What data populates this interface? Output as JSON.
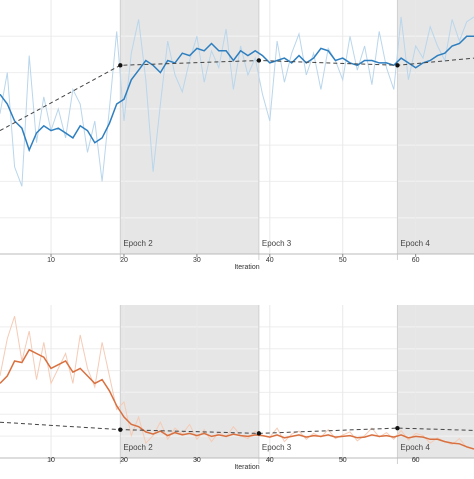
{
  "chart_data": [
    {
      "type": "line",
      "title": "",
      "xlabel": "Iteration",
      "ylabel": "",
      "xlim": [
        3,
        68
      ],
      "xticks": [
        10,
        20,
        30,
        40,
        50,
        60
      ],
      "grid": true,
      "epoch_boundaries": [
        19.5,
        38.5,
        57.5
      ],
      "epoch_labels": [
        "Epoch 2",
        "Epoch 3",
        "Epoch 4"
      ],
      "shaded_epochs": [
        [
          19.5,
          38.5
        ],
        [
          57.5,
          68
        ]
      ],
      "colors": {
        "smoothed": "#2e7fc0",
        "raw": "#b9d6ec",
        "validation": "#444444",
        "shade": "#e6e6e6"
      },
      "series": [
        {
          "role": "raw",
          "x": [
            3,
            4,
            5,
            6,
            7,
            8,
            9,
            10,
            11,
            12,
            13,
            14,
            15,
            16,
            17,
            18,
            19,
            20,
            21,
            22,
            23,
            24,
            25,
            26,
            27,
            28,
            29,
            30,
            31,
            32,
            33,
            34,
            35,
            36,
            37,
            38,
            39,
            40,
            41,
            42,
            43,
            44,
            45,
            46,
            47,
            48,
            49,
            50,
            51,
            52,
            53,
            54,
            55,
            56,
            57,
            58,
            59,
            60,
            61,
            62,
            63,
            64,
            65,
            66,
            67,
            68
          ],
          "y": [
            0.58,
            0.75,
            0.36,
            0.28,
            0.82,
            0.46,
            0.65,
            0.51,
            0.6,
            0.48,
            0.68,
            0.62,
            0.42,
            0.55,
            0.3,
            0.6,
            0.92,
            0.55,
            0.83,
            0.97,
            0.72,
            0.34,
            0.62,
            0.88,
            0.74,
            0.67,
            0.8,
            0.9,
            0.71,
            0.84,
            0.77,
            0.93,
            0.68,
            0.86,
            0.74,
            0.81,
            0.66,
            0.55,
            0.88,
            0.71,
            0.83,
            0.91,
            0.74,
            0.83,
            0.68,
            0.85,
            0.8,
            0.72,
            0.9,
            0.76,
            0.86,
            0.7,
            0.92,
            0.77,
            0.68,
            0.98,
            0.72,
            0.86,
            0.81,
            0.94,
            0.86,
            0.8,
            0.97,
            0.88,
            0.96,
            0.98
          ]
        },
        {
          "role": "smoothed",
          "x": [
            3,
            4,
            5,
            6,
            7,
            8,
            9,
            10,
            11,
            12,
            13,
            14,
            15,
            16,
            17,
            18,
            19,
            20,
            21,
            22,
            23,
            24,
            25,
            26,
            27,
            28,
            29,
            30,
            31,
            32,
            33,
            34,
            35,
            36,
            37,
            38,
            39,
            40,
            41,
            42,
            43,
            44,
            45,
            46,
            47,
            48,
            49,
            50,
            51,
            52,
            53,
            54,
            55,
            56,
            57,
            58,
            59,
            60,
            61,
            62,
            63,
            64,
            65,
            66,
            67,
            68
          ],
          "y": [
            0.66,
            0.62,
            0.55,
            0.52,
            0.43,
            0.5,
            0.53,
            0.51,
            0.52,
            0.5,
            0.48,
            0.53,
            0.51,
            0.46,
            0.48,
            0.54,
            0.62,
            0.64,
            0.72,
            0.76,
            0.8,
            0.78,
            0.75,
            0.8,
            0.79,
            0.83,
            0.82,
            0.85,
            0.84,
            0.87,
            0.84,
            0.84,
            0.8,
            0.84,
            0.82,
            0.84,
            0.82,
            0.79,
            0.8,
            0.81,
            0.79,
            0.82,
            0.79,
            0.81,
            0.85,
            0.84,
            0.8,
            0.81,
            0.79,
            0.78,
            0.8,
            0.8,
            0.79,
            0.79,
            0.78,
            0.81,
            0.79,
            0.77,
            0.79,
            0.8,
            0.82,
            0.83,
            0.86,
            0.87,
            0.9,
            0.9
          ]
        },
        {
          "role": "validation",
          "x": [
            3,
            19.5,
            38.5,
            57.5,
            68
          ],
          "y": [
            0.51,
            0.78,
            0.8,
            0.78,
            0.81
          ],
          "markers": [
            19.5,
            38.5,
            57.5
          ]
        }
      ]
    },
    {
      "type": "line",
      "title": "",
      "xlabel": "Iteration",
      "ylabel": "",
      "xlim": [
        3,
        68
      ],
      "xticks": [
        10,
        20,
        30,
        40,
        50,
        60
      ],
      "grid": true,
      "epoch_boundaries": [
        19.5,
        38.5,
        57.5
      ],
      "epoch_labels": [
        "Epoch 2",
        "Epoch 3",
        "Epoch 4"
      ],
      "shaded_epochs": [
        [
          19.5,
          38.5
        ],
        [
          57.5,
          68
        ]
      ],
      "colors": {
        "smoothed": "#d9703f",
        "raw": "#f5cbb6",
        "validation": "#444444",
        "shade": "#e6e6e6"
      },
      "series": [
        {
          "role": "raw",
          "x": [
            3,
            4,
            5,
            6,
            7,
            8,
            9,
            10,
            11,
            12,
            13,
            14,
            15,
            16,
            17,
            18,
            19,
            20,
            21,
            22,
            23,
            24,
            25,
            26,
            27,
            28,
            29,
            30,
            31,
            32,
            33,
            34,
            35,
            36,
            37,
            38,
            39,
            40,
            41,
            42,
            43,
            44,
            45,
            46,
            47,
            48,
            49,
            50,
            51,
            52,
            53,
            54,
            55,
            56,
            57,
            58,
            59,
            60,
            61,
            62,
            63,
            64,
            65,
            66,
            67,
            68
          ],
          "y": [
            1.1,
            1.6,
            1.9,
            1.3,
            1.7,
            1.05,
            1.55,
            1.0,
            1.2,
            1.4,
            1.0,
            1.65,
            1.2,
            0.95,
            1.55,
            1.1,
            0.65,
            0.75,
            0.3,
            0.55,
            0.2,
            0.3,
            0.48,
            0.25,
            0.4,
            0.32,
            0.45,
            0.25,
            0.38,
            0.22,
            0.35,
            0.28,
            0.42,
            0.3,
            0.26,
            0.36,
            0.3,
            0.28,
            0.4,
            0.22,
            0.32,
            0.36,
            0.25,
            0.33,
            0.28,
            0.38,
            0.26,
            0.31,
            0.35,
            0.23,
            0.3,
            0.4,
            0.28,
            0.34,
            0.25,
            0.37,
            0.24,
            0.33,
            0.3,
            0.2,
            0.27,
            0.22,
            0.18,
            0.26,
            0.14,
            0.12
          ]
        },
        {
          "role": "smoothed",
          "x": [
            3,
            4,
            5,
            6,
            7,
            8,
            9,
            10,
            11,
            12,
            13,
            14,
            15,
            16,
            17,
            18,
            19,
            20,
            21,
            22,
            23,
            24,
            25,
            26,
            27,
            28,
            29,
            30,
            31,
            32,
            33,
            34,
            35,
            36,
            37,
            38,
            39,
            40,
            41,
            42,
            43,
            44,
            45,
            46,
            47,
            48,
            49,
            50,
            51,
            52,
            53,
            54,
            55,
            56,
            57,
            58,
            59,
            60,
            61,
            62,
            63,
            64,
            65,
            66,
            67,
            68
          ],
          "y": [
            1.0,
            1.1,
            1.3,
            1.28,
            1.45,
            1.4,
            1.35,
            1.2,
            1.25,
            1.3,
            1.15,
            1.2,
            1.1,
            1.0,
            1.05,
            0.9,
            0.7,
            0.55,
            0.45,
            0.42,
            0.35,
            0.32,
            0.36,
            0.3,
            0.34,
            0.31,
            0.33,
            0.3,
            0.33,
            0.29,
            0.31,
            0.29,
            0.32,
            0.3,
            0.29,
            0.31,
            0.3,
            0.28,
            0.31,
            0.27,
            0.29,
            0.31,
            0.28,
            0.3,
            0.29,
            0.31,
            0.28,
            0.29,
            0.3,
            0.27,
            0.28,
            0.31,
            0.29,
            0.3,
            0.28,
            0.31,
            0.27,
            0.29,
            0.28,
            0.25,
            0.25,
            0.22,
            0.2,
            0.19,
            0.15,
            0.12
          ]
        },
        {
          "role": "validation",
          "x": [
            3,
            19.5,
            38.5,
            57.5,
            68
          ],
          "y": [
            0.48,
            0.38,
            0.33,
            0.4,
            0.37
          ],
          "markers": [
            19.5,
            38.5,
            57.5
          ]
        }
      ]
    }
  ]
}
